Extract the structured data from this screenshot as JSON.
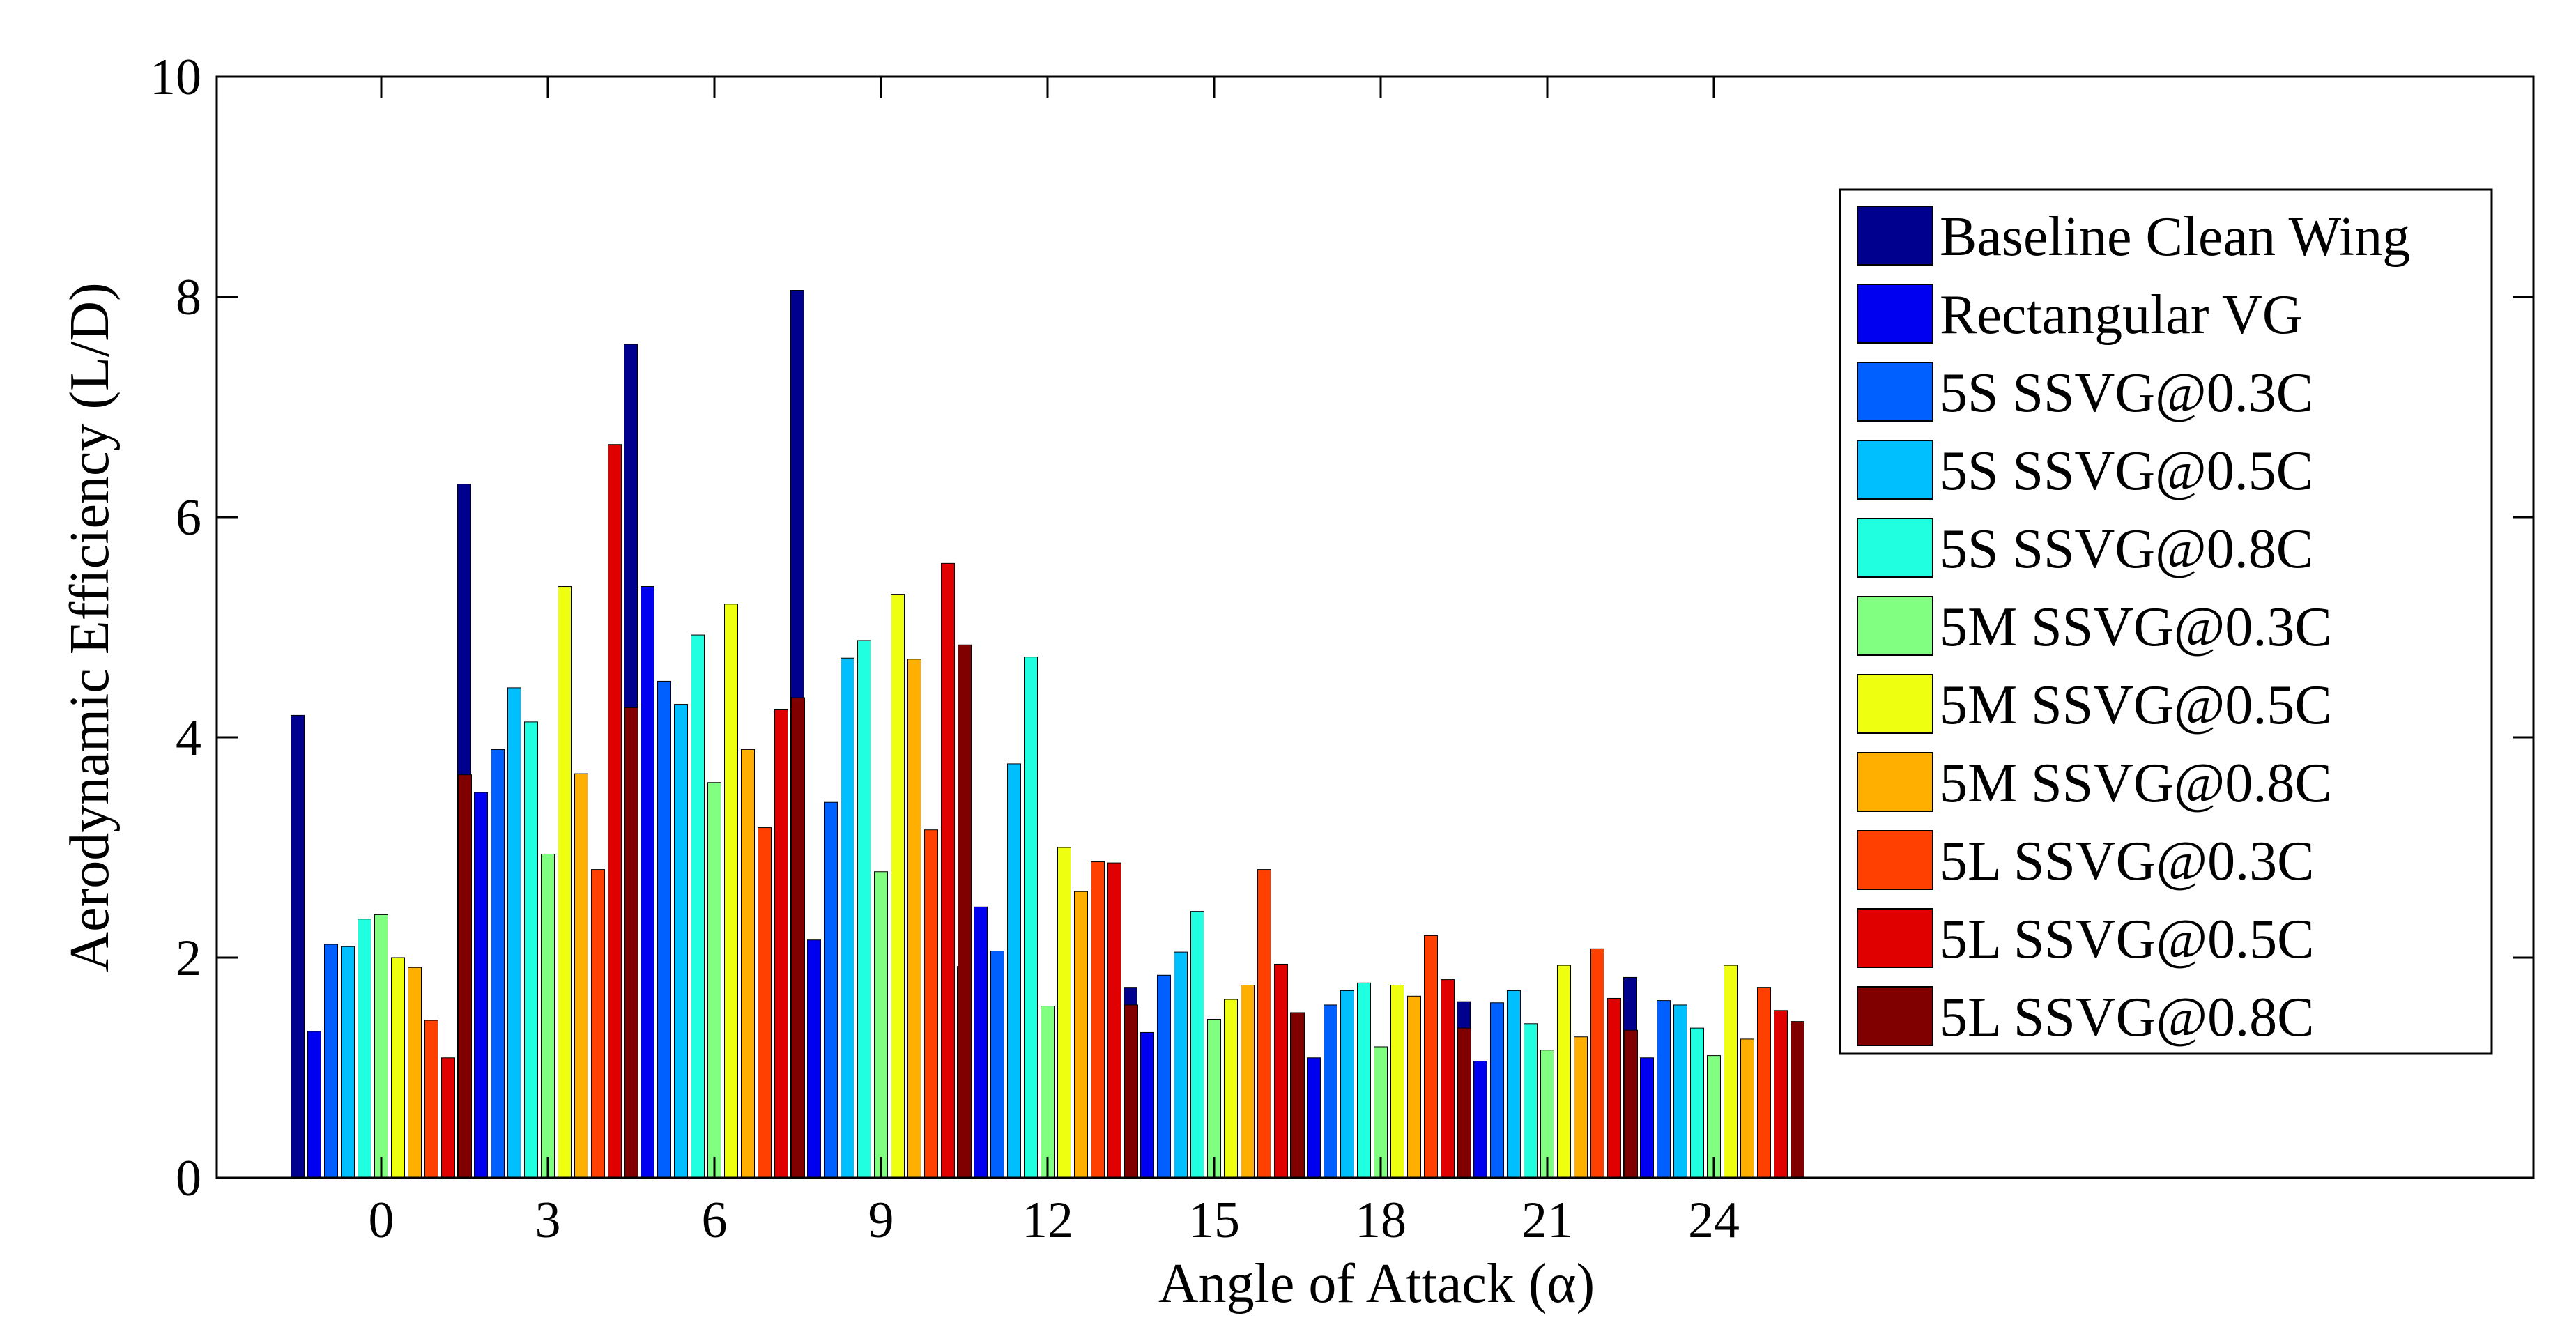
{
  "chart_data": {
    "type": "bar",
    "title": "",
    "xlabel": "Angle of Attack (α)",
    "ylabel": "Aerodynamic Efficiency (L/D)",
    "categories": [
      "0",
      "3",
      "6",
      "9",
      "12",
      "15",
      "18",
      "21",
      "24"
    ],
    "ylim": [
      0,
      10
    ],
    "yticks": [
      "0",
      "2",
      "4",
      "6",
      "8",
      "10"
    ],
    "grid": false,
    "legend_position": "right",
    "series": [
      {
        "name": "Baseline Clean Wing",
        "color": "#00008F",
        "values": [
          4.2,
          6.3,
          7.57,
          8.06,
          1.92,
          1.73,
          1.5,
          1.6,
          1.82
        ]
      },
      {
        "name": "Rectangular VG",
        "color": "#0000F0",
        "values": [
          1.33,
          3.5,
          5.37,
          2.16,
          2.46,
          1.32,
          1.09,
          1.06,
          1.09
        ]
      },
      {
        "name": "5S SSVG@0.3C",
        "color": "#0060FF",
        "values": [
          2.12,
          3.89,
          4.51,
          3.41,
          2.06,
          1.84,
          1.57,
          1.59,
          1.61
        ]
      },
      {
        "name": "5S SSVG@0.5C",
        "color": "#00BFFF",
        "values": [
          2.1,
          4.45,
          4.3,
          4.72,
          3.76,
          2.05,
          1.7,
          1.7,
          1.57
        ]
      },
      {
        "name": "5S SSVG@0.8C",
        "color": "#20FFDF",
        "values": [
          2.35,
          4.14,
          4.93,
          4.88,
          4.73,
          2.42,
          1.77,
          1.4,
          1.36
        ]
      },
      {
        "name": "5M SSVG@0.3C",
        "color": "#80FF80",
        "values": [
          2.39,
          2.94,
          3.59,
          2.78,
          1.56,
          1.44,
          1.19,
          1.16,
          1.11
        ]
      },
      {
        "name": "5M SSVG@0.5C",
        "color": "#EFFF10",
        "values": [
          2.0,
          5.37,
          5.21,
          5.3,
          3.0,
          1.62,
          1.75,
          1.93,
          1.93
        ]
      },
      {
        "name": "5M SSVG@0.8C",
        "color": "#FFAF00",
        "values": [
          1.91,
          3.67,
          3.89,
          4.71,
          2.6,
          1.75,
          1.65,
          1.28,
          1.26
        ]
      },
      {
        "name": "5L SSVG@0.3C",
        "color": "#FF4000",
        "values": [
          1.43,
          2.8,
          3.18,
          3.16,
          2.87,
          2.8,
          2.2,
          2.08,
          1.73
        ]
      },
      {
        "name": "5L SSVG@0.5C",
        "color": "#E00000",
        "values": [
          1.09,
          6.66,
          4.25,
          5.58,
          2.86,
          1.94,
          1.8,
          1.63,
          1.52
        ]
      },
      {
        "name": "5L SSVG@0.8C",
        "color": "#800000",
        "values": [
          3.66,
          4.27,
          4.36,
          4.84,
          1.57,
          1.5,
          1.36,
          1.34,
          1.42
        ]
      }
    ]
  }
}
